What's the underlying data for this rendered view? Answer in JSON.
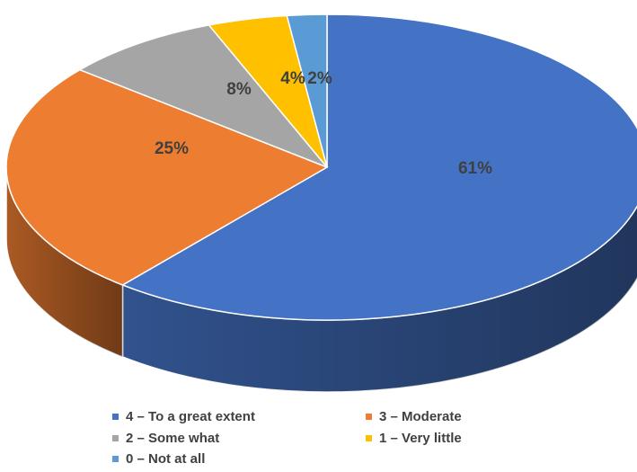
{
  "chart_data": {
    "type": "pie",
    "title": "",
    "slices": [
      {
        "label": "4 – To a great extent",
        "value": 61,
        "display": "61%",
        "color": "#4472C4"
      },
      {
        "label": "3 – Moderate",
        "value": 25,
        "display": "25%",
        "color": "#ED7D31"
      },
      {
        "label": "2 – Some what",
        "value": 8,
        "display": "8%",
        "color": "#A5A5A5"
      },
      {
        "label": "1 – Very little",
        "value": 4,
        "display": "4%",
        "color": "#FFC000"
      },
      {
        "label": "0 – Not at all",
        "value": 2,
        "display": "2%",
        "color": "#5B9BD5"
      }
    ],
    "legend_position": "bottom",
    "style": "3d-pie"
  }
}
